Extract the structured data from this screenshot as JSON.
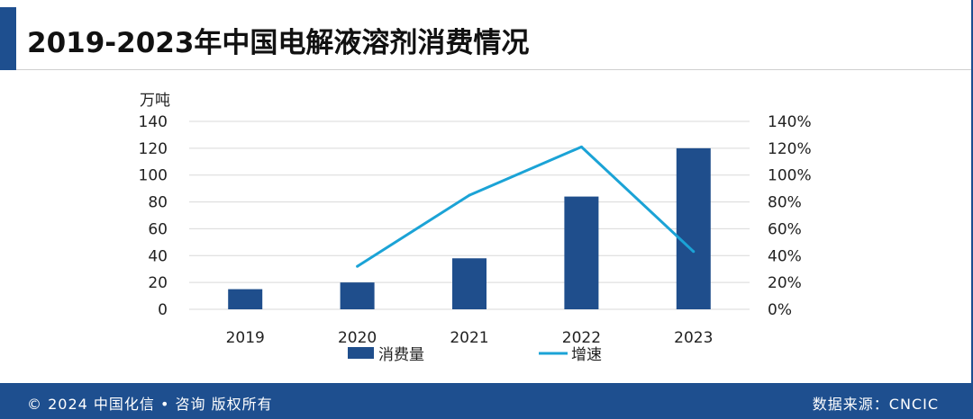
{
  "header": {
    "title": "2019-2023年中国电解液溶剂消费情况"
  },
  "colors": {
    "accent": "#1e4f8f",
    "bar": "#1f4e8c",
    "line": "#1ba3d6",
    "grid": "#d9d9d9"
  },
  "chart_data": {
    "type": "bar",
    "title": "2019-2023年中国电解液溶剂消费情况",
    "ylabel": "万吨",
    "categories": [
      "2019",
      "2020",
      "2021",
      "2022",
      "2023"
    ],
    "ylim": [
      0,
      140
    ],
    "y_ticks": [
      "0",
      "20",
      "40",
      "60",
      "80",
      "100",
      "120",
      "140"
    ],
    "y2lim": [
      0,
      140
    ],
    "y2_ticks": [
      "0%",
      "20%",
      "40%",
      "60%",
      "80%",
      "100%",
      "120%",
      "140%"
    ],
    "grid": true,
    "legend_position": "bottom",
    "series": [
      {
        "name": "消费量",
        "type": "bar",
        "axis": "left",
        "values": [
          15,
          20,
          38,
          84,
          120
        ]
      },
      {
        "name": "增速",
        "type": "line",
        "axis": "right",
        "values": [
          null,
          32,
          85,
          121,
          43
        ]
      }
    ]
  },
  "footer": {
    "copyright": "© 2024 中国化信 • 咨询  版权所有",
    "source": "数据来源：CNCIC"
  }
}
